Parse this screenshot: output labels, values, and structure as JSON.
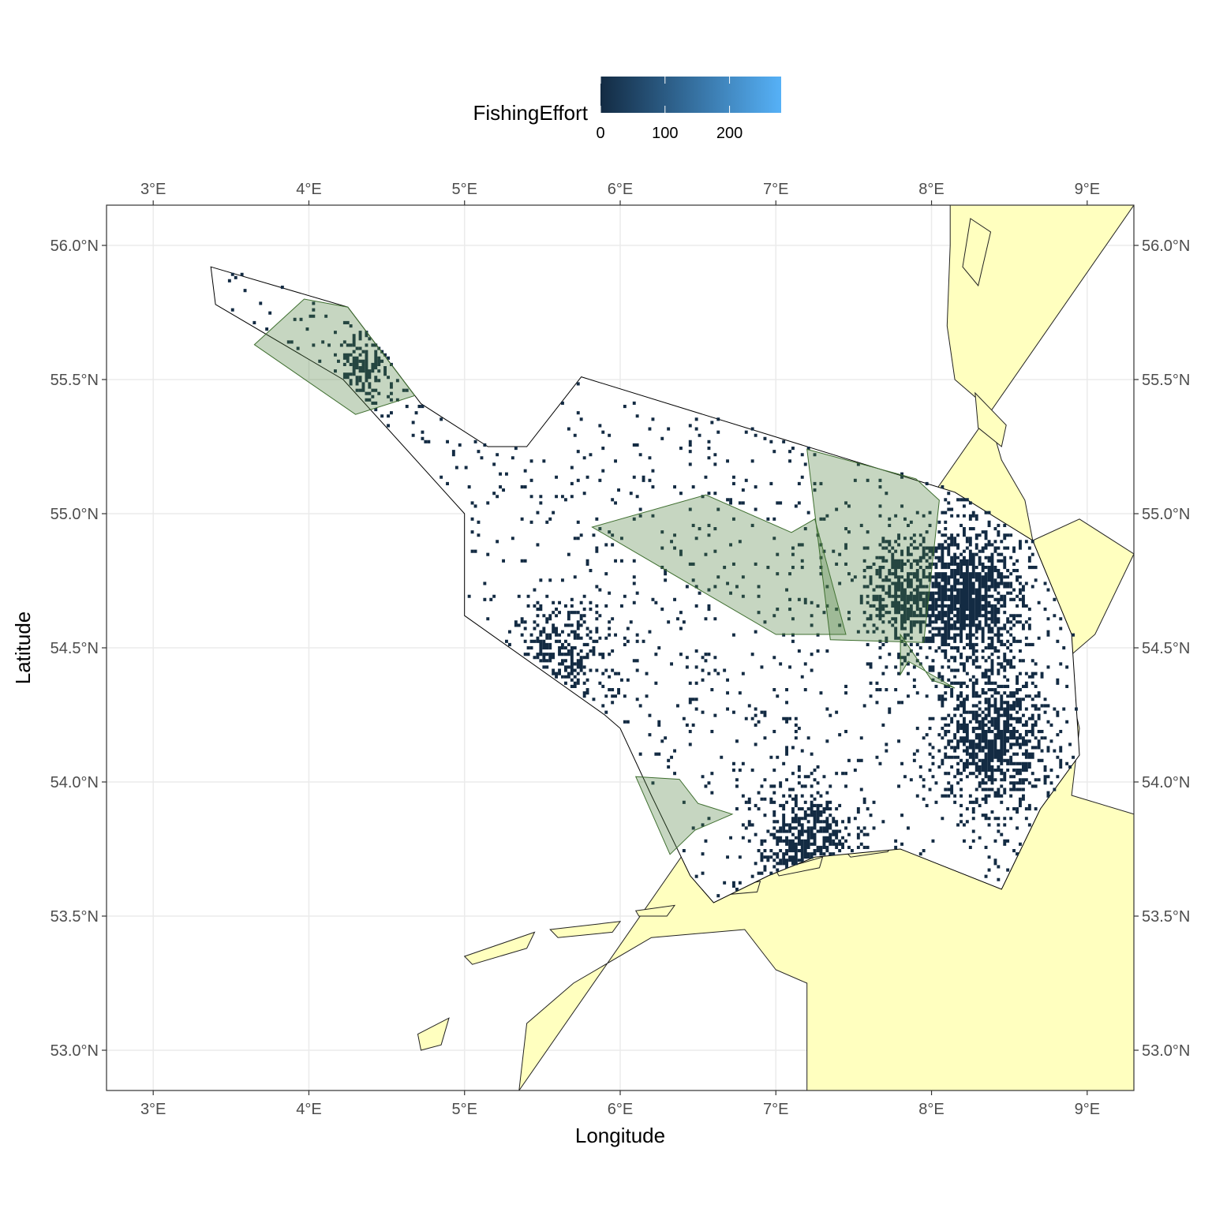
{
  "chart_data": {
    "type": "map",
    "xlabel": "Longitude",
    "ylabel": "Latitude",
    "xlim": [
      2.7,
      9.3
    ],
    "ylim": [
      52.85,
      56.15
    ],
    "x_ticks": [
      3,
      4,
      5,
      6,
      7,
      8,
      9
    ],
    "x_tick_labels": [
      "3°E",
      "4°E",
      "5°E",
      "6°E",
      "7°E",
      "8°E",
      "9°E"
    ],
    "y_ticks": [
      53.0,
      53.5,
      54.0,
      54.5,
      55.0,
      55.5,
      56.0
    ],
    "y_tick_labels": [
      "53.0°N",
      "53.5°N",
      "54.0°N",
      "54.5°N",
      "55.0°N",
      "55.5°N",
      "56.0°N"
    ],
    "grid": true,
    "legend": {
      "title": "FishingEffort",
      "position": "top",
      "min": 0,
      "max": 280,
      "ticks": [
        0,
        100,
        200
      ],
      "tick_labels": [
        "0",
        "100",
        "200"
      ],
      "color_low": "#132b43",
      "color_high": "#56b1f7"
    },
    "colors": {
      "land": "#ffffbf",
      "sea": "#ffffff",
      "protected_area": "#4f7f3f",
      "effort": "#132b43",
      "grid": "#ebebeb"
    },
    "study_area": [
      [
        3.37,
        55.92
      ],
      [
        4.25,
        55.77
      ],
      [
        4.72,
        55.41
      ],
      [
        5.15,
        55.25
      ],
      [
        5.4,
        55.25
      ],
      [
        5.75,
        55.51
      ],
      [
        8.15,
        55.08
      ],
      [
        8.65,
        54.9
      ],
      [
        8.9,
        54.55
      ],
      [
        8.95,
        54.1
      ],
      [
        8.7,
        53.9
      ],
      [
        8.45,
        53.6
      ],
      [
        7.8,
        53.75
      ],
      [
        7.25,
        53.72
      ],
      [
        6.95,
        53.65
      ],
      [
        6.6,
        53.55
      ],
      [
        6.45,
        53.65
      ],
      [
        6.2,
        53.95
      ],
      [
        6.0,
        54.2
      ],
      [
        5.9,
        54.25
      ],
      [
        5.0,
        54.62
      ],
      [
        5.0,
        55.0
      ],
      [
        4.22,
        55.5
      ],
      [
        3.4,
        55.78
      ]
    ],
    "protected_areas": [
      [
        [
          3.65,
          55.63
        ],
        [
          3.97,
          55.8
        ],
        [
          4.25,
          55.77
        ],
        [
          4.68,
          55.44
        ],
        [
          4.3,
          55.37
        ]
      ],
      [
        [
          5.82,
          54.95
        ],
        [
          6.55,
          55.07
        ],
        [
          7.1,
          54.93
        ],
        [
          7.25,
          54.98
        ],
        [
          7.45,
          54.55
        ],
        [
          7.0,
          54.55
        ]
      ],
      [
        [
          7.2,
          55.24
        ],
        [
          7.9,
          55.13
        ],
        [
          8.05,
          55.05
        ],
        [
          7.95,
          54.52
        ],
        [
          7.35,
          54.53
        ]
      ],
      [
        [
          7.8,
          54.55
        ],
        [
          8.0,
          54.38
        ],
        [
          8.15,
          54.35
        ],
        [
          7.85,
          54.45
        ],
        [
          7.8,
          54.4
        ]
      ],
      [
        [
          6.1,
          54.02
        ],
        [
          6.38,
          54.01
        ],
        [
          6.5,
          53.92
        ],
        [
          6.72,
          53.88
        ],
        [
          6.48,
          53.82
        ],
        [
          6.32,
          53.73
        ]
      ]
    ],
    "effort_hotspots": [
      {
        "lon": 4.35,
        "lat": 55.52,
        "sd": 0.1,
        "density": 0.7
      },
      {
        "lon": 8.22,
        "lat": 54.7,
        "sd": 0.2,
        "density": 0.9
      },
      {
        "lon": 8.4,
        "lat": 54.15,
        "sd": 0.2,
        "density": 0.75
      },
      {
        "lon": 7.2,
        "lat": 53.72,
        "sd": 0.18,
        "density": 0.8
      },
      {
        "lon": 5.6,
        "lat": 54.45,
        "sd": 0.18,
        "density": 0.45
      },
      {
        "lon": 7.8,
        "lat": 54.7,
        "sd": 0.15,
        "density": 0.55
      }
    ]
  }
}
